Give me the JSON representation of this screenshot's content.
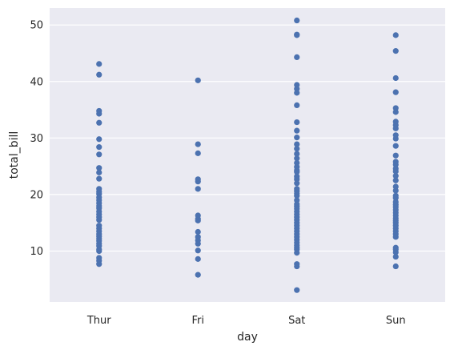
{
  "chart_data": {
    "type": "scatter",
    "title": "",
    "xlabel": "day",
    "ylabel": "total_bill",
    "categories": [
      "Thur",
      "Fri",
      "Sat",
      "Sun"
    ],
    "ylim": [
      1,
      53
    ],
    "yticks": [
      10,
      20,
      30,
      40,
      50
    ],
    "grid": true,
    "colors": {
      "background": "#eaeaf2",
      "grid": "#ffffff",
      "point": "#4c72b0",
      "text": "#262626"
    },
    "series": [
      {
        "category": "Thur",
        "values": [
          43.1,
          41.2,
          34.8,
          34.3,
          32.7,
          29.8,
          28.4,
          27.1,
          24.7,
          23.9,
          22.8,
          21.0,
          20.5,
          20.1,
          19.5,
          19.0,
          18.5,
          18.0,
          17.6,
          17.0,
          16.5,
          16.0,
          15.5,
          14.5,
          14.0,
          13.5,
          13.0,
          12.6,
          12.2,
          11.8,
          11.3,
          10.9,
          10.3,
          10.0,
          8.8,
          8.3,
          7.7
        ]
      },
      {
        "category": "Fri",
        "values": [
          40.2,
          28.9,
          27.3,
          22.7,
          22.3,
          21.0,
          16.3,
          15.7,
          15.4,
          13.4,
          12.5,
          11.9,
          11.3,
          10.1,
          8.6,
          5.8
        ]
      },
      {
        "category": "Sat",
        "values": [
          50.8,
          48.3,
          48.2,
          44.3,
          39.4,
          38.7,
          38.0,
          35.8,
          32.8,
          31.3,
          30.1,
          28.9,
          28.1,
          27.2,
          26.4,
          25.6,
          24.9,
          24.3,
          24.0,
          23.2,
          22.7,
          22.0,
          21.0,
          20.6,
          20.2,
          19.8,
          19.0,
          18.3,
          17.9,
          17.5,
          17.0,
          16.5,
          16.0,
          15.5,
          15.0,
          14.5,
          14.0,
          13.5,
          13.0,
          12.5,
          12.0,
          11.5,
          11.0,
          10.6,
          10.3,
          9.7,
          7.7,
          7.3,
          3.1
        ]
      },
      {
        "category": "Sun",
        "values": [
          48.2,
          45.4,
          40.6,
          38.1,
          35.3,
          34.6,
          32.9,
          32.3,
          31.7,
          30.5,
          29.9,
          28.6,
          26.9,
          25.8,
          25.3,
          24.6,
          24.1,
          23.3,
          22.5,
          21.4,
          20.7,
          19.8,
          19.4,
          18.7,
          18.2,
          17.8,
          17.3,
          16.8,
          16.3,
          15.8,
          15.4,
          15.0,
          14.5,
          14.0,
          13.5,
          13.0,
          12.5,
          10.6,
          10.3,
          9.8,
          9.0,
          7.3
        ]
      }
    ]
  }
}
